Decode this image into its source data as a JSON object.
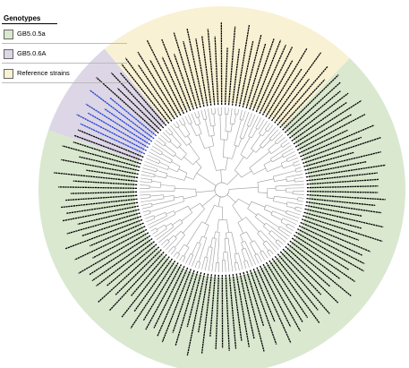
{
  "legend": {
    "title": "Genotypes",
    "items": [
      {
        "label": "GB5.0.5a",
        "color": "#d9e8cf"
      },
      {
        "label": "GB5.0.6A",
        "color": "#dcd6e6"
      },
      {
        "label": "Reference strains",
        "color": "#f8f1d3"
      }
    ]
  },
  "colors": {
    "branch": "#9a9a9a",
    "leaf_label_default": "#000000",
    "leaf_label_highlight": "#1e3fd1"
  },
  "tree": {
    "leaf_count": 150,
    "sectors": [
      {
        "genotype": "GB5.0.5a",
        "count": 90
      },
      {
        "genotype": "GB5.0.6A",
        "count": 13
      },
      {
        "genotype": "Reference strains",
        "count": 35
      },
      {
        "genotype": "GB5.0.5a",
        "count": 12
      }
    ],
    "highlighted_leaf_indices": [
      92,
      93,
      94,
      95,
      96,
      97,
      98
    ]
  }
}
